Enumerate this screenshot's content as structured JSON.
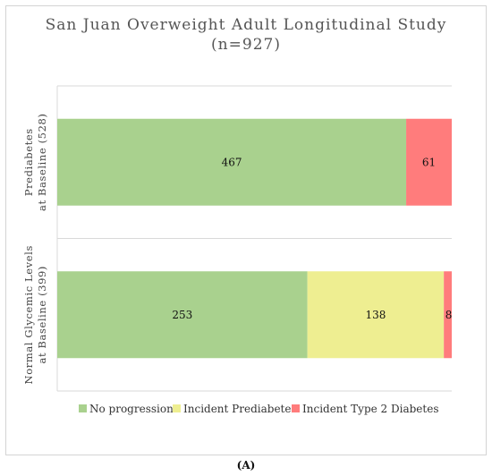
{
  "figure_label": "(A)",
  "chart_data": {
    "type": "bar",
    "orientation": "horizontal",
    "stacked": true,
    "title": "San Juan Overweight Adult Longitudinal Study",
    "subtitle": "(n=927)",
    "categories": [
      [
        "Prediabetes",
        "at Baseline (528)"
      ],
      [
        "Normal Glycemic Levels",
        "at Baseline (399)"
      ]
    ],
    "series": [
      {
        "name": "No progression",
        "color": "#a9d18e",
        "values": [
          467,
          253
        ]
      },
      {
        "name": "Incident Prediabetes",
        "color": "#eeee91",
        "values": [
          0,
          138
        ]
      },
      {
        "name": "Incident Type 2 Diabetes",
        "color": "#ff7c7c",
        "values": [
          61,
          8
        ]
      }
    ],
    "data_labels": [
      [
        "467",
        "",
        "61"
      ],
      [
        "253",
        "138",
        "8"
      ]
    ],
    "legend_position": "bottom",
    "grid": true
  }
}
